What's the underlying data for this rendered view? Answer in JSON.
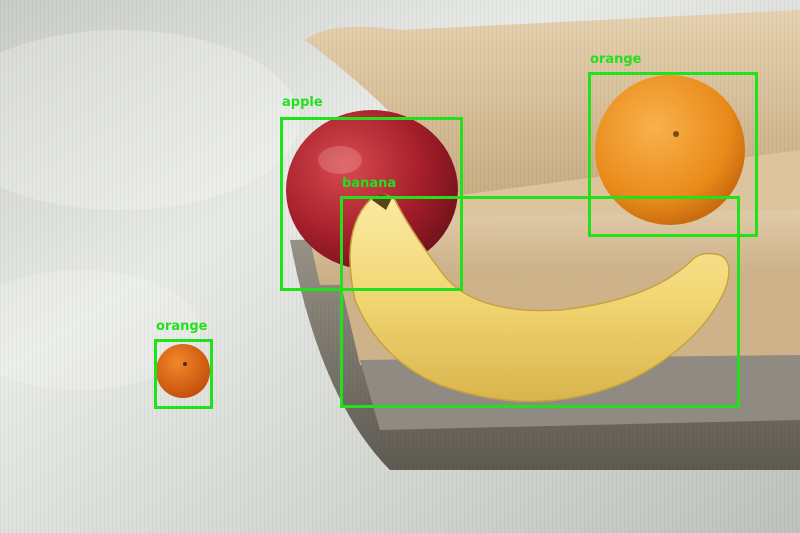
{
  "image": {
    "subject": "fruit on stack of folded placemats",
    "box_color": "#22e01c",
    "label_color": "#22e01c"
  },
  "detections": [
    {
      "label": "apple"
    },
    {
      "label": "banana"
    },
    {
      "label": "orange"
    },
    {
      "label": "orange"
    }
  ]
}
